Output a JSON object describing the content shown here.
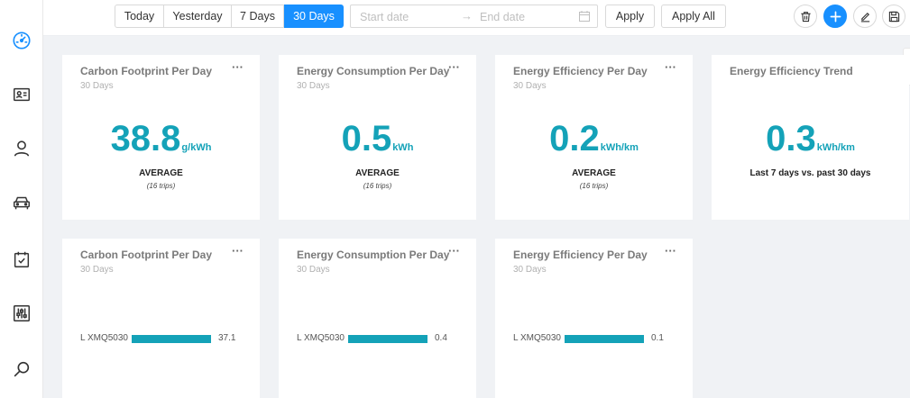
{
  "sidebar": {
    "items": [
      {
        "icon": "dashboard-gauge-icon",
        "active": true
      },
      {
        "icon": "id-card-icon",
        "active": false
      },
      {
        "icon": "user-icon",
        "active": false
      },
      {
        "icon": "car-icon",
        "active": false
      },
      {
        "icon": "calendar-check-icon",
        "active": false
      },
      {
        "icon": "sliders-icon",
        "active": false
      },
      {
        "icon": "search-icon",
        "active": false
      }
    ]
  },
  "toolbar": {
    "ranges": [
      {
        "label": "Today",
        "active": false
      },
      {
        "label": "Yesterday",
        "active": false
      },
      {
        "label": "7 Days",
        "active": false
      },
      {
        "label": "30 Days",
        "active": true
      }
    ],
    "start_placeholder": "Start date",
    "end_placeholder": "End date",
    "arrow": "→",
    "apply_label": "Apply",
    "apply_all_label": "Apply All",
    "actions": [
      "delete-icon",
      "add-icon",
      "edit-icon",
      "save-icon"
    ]
  },
  "kpi_cards": [
    {
      "title": "Carbon Footprint Per Day",
      "subtitle": "30 Days",
      "value": "38.8",
      "unit": "g/kWh",
      "label": "AVERAGE",
      "note": "(16 trips)",
      "menu": "···"
    },
    {
      "title": "Energy Consumption Per Day",
      "subtitle": "30 Days",
      "value": "0.5",
      "unit": "kWh",
      "label": "AVERAGE",
      "note": "(16 trips)",
      "menu": "···"
    },
    {
      "title": "Energy Efficiency Per Day",
      "subtitle": "30 Days",
      "value": "0.2",
      "unit": "kWh/km",
      "label": "AVERAGE",
      "note": "(16 trips)",
      "menu": "···"
    },
    {
      "title": "Energy Efficiency Trend",
      "subtitle": "",
      "value": "0.3",
      "unit": "kWh/km",
      "label": "Last 7 days vs. past 30 days",
      "note": "",
      "menu": ""
    }
  ],
  "bar_cards": [
    {
      "title": "Carbon Footprint Per Day",
      "subtitle": "30 Days",
      "menu": "···",
      "category": "L XMQ5030",
      "value_label": "37.1"
    },
    {
      "title": "Energy Consumption Per Day",
      "subtitle": "30 Days",
      "menu": "···",
      "category": "L XMQ5030",
      "value_label": "0.4"
    },
    {
      "title": "Energy Efficiency Per Day",
      "subtitle": "30 Days",
      "menu": "···",
      "category": "L XMQ5030",
      "value_label": "0.1"
    }
  ],
  "chart_data": [
    {
      "type": "bar",
      "orientation": "horizontal",
      "title": "Carbon Footprint Per Day",
      "subtitle": "30 Days",
      "categories": [
        "L XMQ5030"
      ],
      "values": [
        37.1
      ]
    },
    {
      "type": "bar",
      "orientation": "horizontal",
      "title": "Energy Consumption Per Day",
      "subtitle": "30 Days",
      "categories": [
        "L XMQ5030"
      ],
      "values": [
        0.4
      ]
    },
    {
      "type": "bar",
      "orientation": "horizontal",
      "title": "Energy Efficiency Per Day",
      "subtitle": "30 Days",
      "categories": [
        "L XMQ5030"
      ],
      "values": [
        0.1
      ]
    }
  ],
  "colors": {
    "accent": "#1890ff",
    "kpi": "#14a2b8",
    "bar": "#14a2b8"
  }
}
